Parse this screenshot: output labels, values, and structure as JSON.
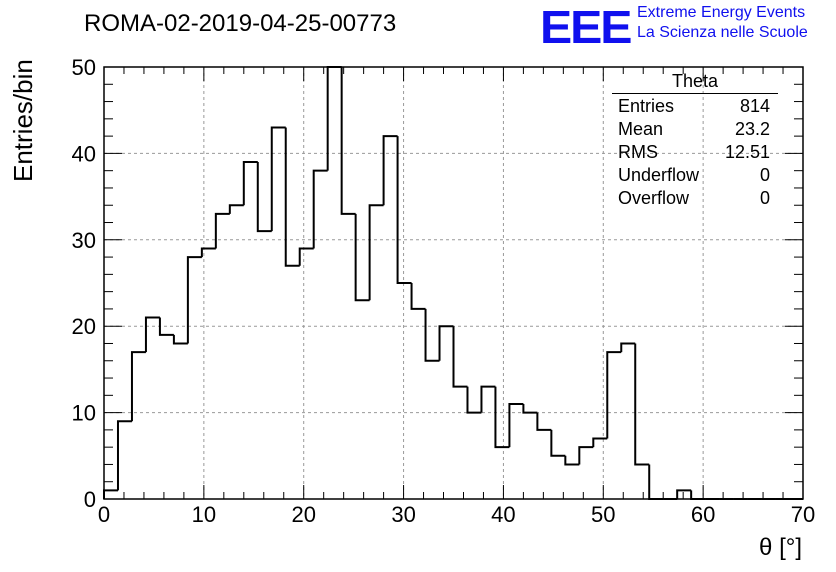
{
  "title": "ROMA-02-2019-04-25-00773",
  "logo": {
    "mark": "EEE",
    "line1": "Extreme Energy Events",
    "line2": "La Scienza nelle Scuole",
    "color": "#1010ee"
  },
  "stats": {
    "name": "Theta",
    "rows": [
      {
        "label": "Entries",
        "value": "814"
      },
      {
        "label": "Mean",
        "value": "23.2"
      },
      {
        "label": "RMS",
        "value": "12.51"
      },
      {
        "label": "Underflow",
        "value": "0"
      },
      {
        "label": "Overflow",
        "value": "0"
      }
    ]
  },
  "chart_data": {
    "type": "histogram",
    "xlabel": "θ [°]",
    "ylabel": "Entries/bin",
    "xlim": [
      0,
      70
    ],
    "ylim": [
      0,
      52
    ],
    "grid": true,
    "bin_width": 1.4,
    "x_ticks": [
      "0",
      "10",
      "20",
      "30",
      "40",
      "50",
      "60",
      "70"
    ],
    "y_ticks": [
      "0",
      "10",
      "20",
      "30",
      "40",
      "50"
    ],
    "values": [
      1,
      9,
      17,
      21,
      19,
      18,
      28,
      29,
      33,
      34,
      39,
      31,
      43,
      27,
      29,
      38,
      50,
      33,
      23,
      34,
      42,
      25,
      22,
      16,
      20,
      13,
      10,
      13,
      6,
      11,
      10,
      8,
      5,
      4,
      6,
      7,
      17,
      18,
      4,
      0,
      0,
      1,
      0,
      0,
      0,
      0,
      0,
      0,
      0,
      0
    ]
  }
}
